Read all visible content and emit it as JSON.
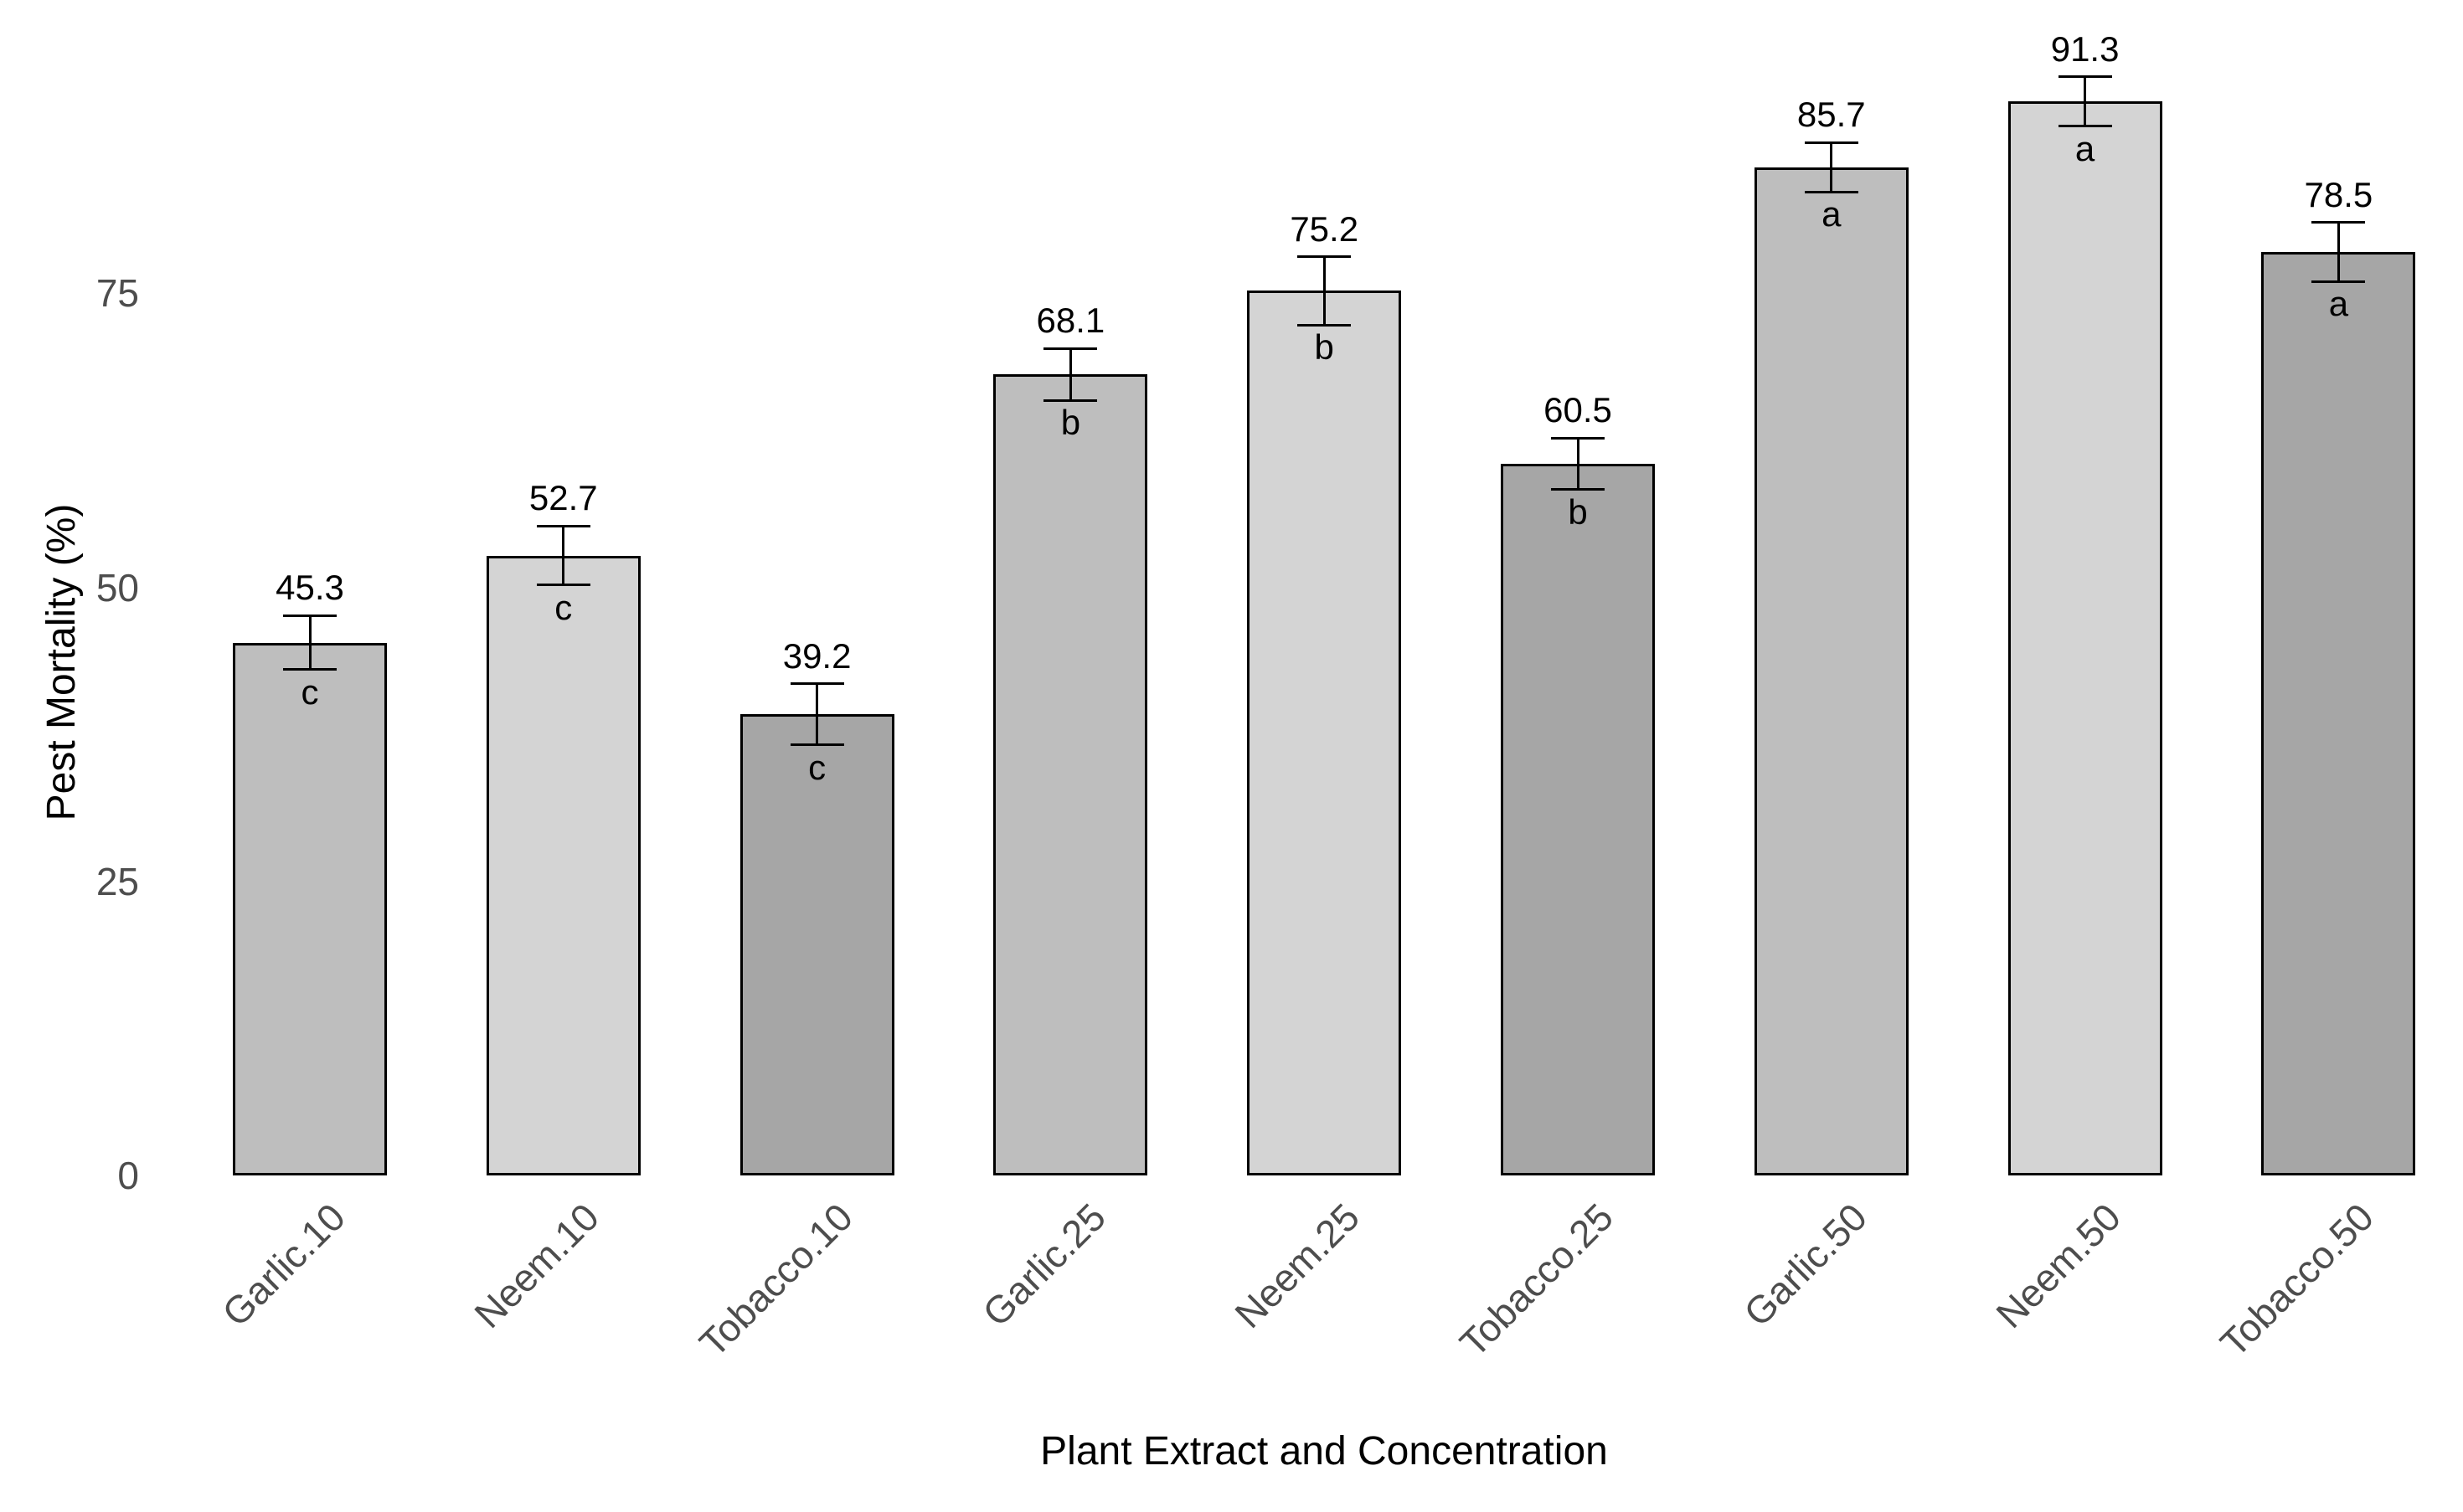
{
  "chart_data": {
    "type": "bar",
    "title": "",
    "xlabel": "Plant Extract and Concentration",
    "ylabel": "Pest Mortality (%)",
    "categories": [
      "Garlic.10",
      "Neem.10",
      "Tobacco.10",
      "Garlic.25",
      "Neem.25",
      "Tobacco.25",
      "Garlic.50",
      "Neem.50",
      "Tobacco.50"
    ],
    "values": [
      45.3,
      52.7,
      39.2,
      68.1,
      75.2,
      60.5,
      85.7,
      91.3,
      78.5
    ],
    "value_labels": [
      "45.3",
      "52.7",
      "39.2",
      "68.1",
      "75.2",
      "60.5",
      "85.7",
      "91.3",
      "78.5"
    ],
    "error_se": [
      2.3,
      2.5,
      2.6,
      2.2,
      2.9,
      2.2,
      2.1,
      2.1,
      2.5
    ],
    "significance_letters": [
      "c",
      "c",
      "c",
      "b",
      "b",
      "b",
      "a",
      "a",
      "a"
    ],
    "bar_fill_colors": [
      "#bebebe",
      "#d4d4d4",
      "#a6a6a6",
      "#bebebe",
      "#d4d4d4",
      "#a6a6a6",
      "#bebebe",
      "#d4d4d4",
      "#a6a6a6"
    ],
    "extract_shades": {
      "Garlic": "#bebebe",
      "Neem": "#d4d4d4",
      "Tobacco": "#a6a6a6"
    },
    "bar_outline_color": "#000000",
    "error_bar_color": "#000000",
    "axis_text_color": "#4d4d4d",
    "axis_title_color": "#000000",
    "background_color": "#ffffff",
    "yticks": [
      "0",
      "25",
      "50",
      "75"
    ],
    "ytick_values": [
      0,
      25,
      50,
      75
    ],
    "ylim": [
      0,
      100
    ],
    "grid": false,
    "legend": "none",
    "x_tick_rotation_deg": 45
  }
}
